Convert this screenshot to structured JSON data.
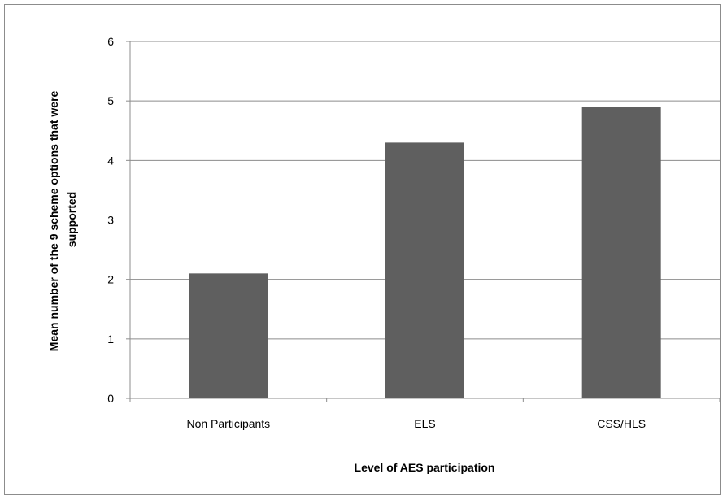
{
  "chart_data": {
    "type": "bar",
    "title": "",
    "categories": [
      "Non Participants",
      "ELS",
      "CSS/HLS"
    ],
    "values": [
      2.1,
      4.3,
      4.9
    ],
    "xlabel": "Level of AES participation",
    "ylabel": "Mean number of the 9 scheme options that were supported",
    "ylabel_lines": [
      "Mean number of the 9 scheme options that were",
      "supported"
    ],
    "ylim": [
      0,
      6
    ],
    "yticks": [
      0,
      1,
      2,
      3,
      4,
      5,
      6
    ],
    "grid": true,
    "legend": "none",
    "bar_color": "#5f5f5f",
    "grid_color": "#8c8c8c"
  }
}
